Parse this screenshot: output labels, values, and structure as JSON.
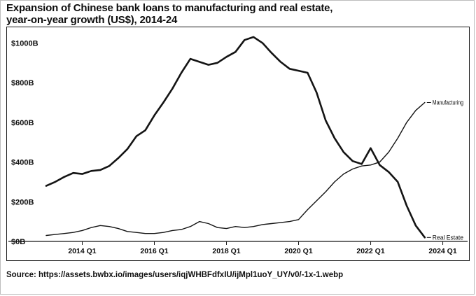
{
  "title": {
    "line1": "Expansion of Chinese bank loans to manufacturing and real estate,",
    "line2": "year-on-year growth (US$), 2014-24"
  },
  "source": "Source: https://assets.bwbx.io/images/users/iqjWHBFdfxIU/ijMpl1uoY_UY/v0/-1x-1.webp",
  "chart_data": {
    "type": "line",
    "title": "Expansion of Chinese bank loans to manufacturing and real estate, year-on-year growth (US$), 2014-24",
    "xlabel": "",
    "ylabel": "",
    "grid": false,
    "legend_position": "end-of-line labels",
    "ylim": [
      0,
      1065
    ],
    "x_range": [
      2013.0,
      2024.3
    ],
    "x_start": 2013.0,
    "x_step": 0.25,
    "x_unit": "year (quarterly)",
    "y_ticks": [
      {
        "v": 0,
        "label": "$0B"
      },
      {
        "v": 200,
        "label": "$200B"
      },
      {
        "v": 400,
        "label": "$400B"
      },
      {
        "v": 600,
        "label": "$600B"
      },
      {
        "v": 800,
        "label": "$800B"
      },
      {
        "v": 1000,
        "label": "$1000B"
      }
    ],
    "x_ticks": [
      {
        "v": 2014,
        "label": "2014 Q1"
      },
      {
        "v": 2016,
        "label": "2016 Q1"
      },
      {
        "v": 2018,
        "label": "2018 Q1"
      },
      {
        "v": 2020,
        "label": "2020 Q1"
      },
      {
        "v": 2022,
        "label": "2022 Q1"
      },
      {
        "v": 2024,
        "label": "2024 Q1"
      }
    ],
    "colors": {
      "line": "#141414",
      "axis": "#141414",
      "text": "#0d0d0d"
    },
    "series": [
      {
        "name": "Real Estate",
        "color": "#141414",
        "stroke_width": 2.6,
        "values": [
          280,
          300,
          325,
          345,
          340,
          355,
          360,
          380,
          420,
          465,
          530,
          560,
          635,
          700,
          770,
          850,
          920,
          905,
          890,
          900,
          930,
          955,
          1015,
          1030,
          1000,
          950,
          905,
          870,
          860,
          850,
          750,
          610,
          520,
          450,
          405,
          390,
          470,
          385,
          350,
          300,
          180,
          80,
          20
        ]
      },
      {
        "name": "Manufacturing",
        "color": "#141414",
        "stroke_width": 1.4,
        "values": [
          30,
          35,
          40,
          45,
          55,
          70,
          80,
          75,
          65,
          50,
          45,
          40,
          40,
          45,
          55,
          60,
          75,
          100,
          90,
          70,
          65,
          75,
          70,
          75,
          85,
          90,
          95,
          100,
          110,
          160,
          205,
          250,
          300,
          340,
          365,
          380,
          385,
          400,
          450,
          520,
          600,
          660,
          700
        ]
      }
    ]
  }
}
